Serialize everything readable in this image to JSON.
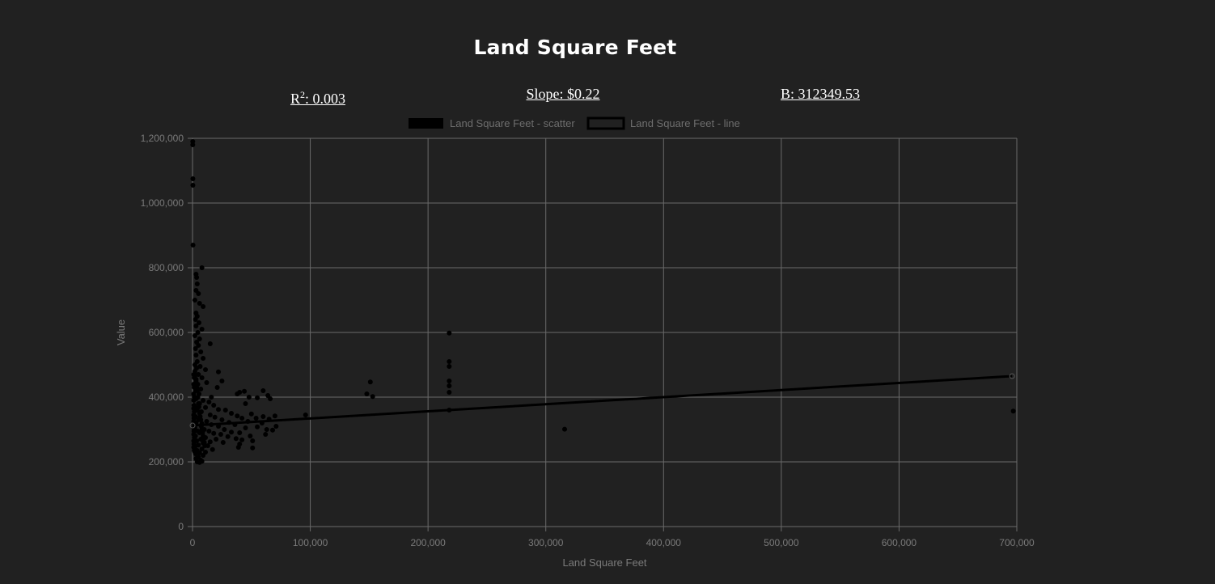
{
  "header": {
    "title": "Land Square Feet",
    "r2_label": "R",
    "r2_sup": "2",
    "r2_value": ": 0.003",
    "slope": "Slope: $0.22",
    "intercept": "B: 312349.53"
  },
  "colors": {
    "background": "#212121",
    "grid": "#6a6a6a",
    "points": "#000000",
    "line": "#000000",
    "muted_text": "#7a7a7a"
  },
  "chart_data": {
    "type": "scatter",
    "xlabel": "Land Square Feet",
    "ylabel": "Value",
    "xlim": [
      0,
      700000
    ],
    "ylim": [
      0,
      1200000
    ],
    "x_ticks": [
      0,
      100000,
      200000,
      300000,
      400000,
      500000,
      600000,
      700000
    ],
    "x_tick_labels": [
      "0",
      "100,000",
      "200,000",
      "300,000",
      "400,000",
      "500,000",
      "600,000",
      "700,000"
    ],
    "y_ticks": [
      0,
      200000,
      400000,
      600000,
      800000,
      1000000,
      1200000
    ],
    "y_tick_labels": [
      "0",
      "200,000",
      "400,000",
      "600,000",
      "800,000",
      "1,000,000",
      "1,200,000"
    ],
    "grid": true,
    "legend": [
      {
        "label": "Land Square Feet - scatter",
        "style": "filled"
      },
      {
        "label": "Land Square Feet - line",
        "style": "outline"
      }
    ],
    "legend_position": "top-center",
    "series": [
      {
        "name": "Land Square Feet - scatter",
        "kind": "scatter",
        "points": [
          [
            200,
            1190000
          ],
          [
            200,
            1180000
          ],
          [
            300,
            1075000
          ],
          [
            300,
            1055000
          ],
          [
            400,
            870000
          ],
          [
            8000,
            800000
          ],
          [
            3000,
            780000
          ],
          [
            3500,
            770000
          ],
          [
            4000,
            750000
          ],
          [
            3000,
            730000
          ],
          [
            5000,
            720000
          ],
          [
            2000,
            700000
          ],
          [
            6000,
            690000
          ],
          [
            9000,
            680000
          ],
          [
            3000,
            660000
          ],
          [
            4000,
            650000
          ],
          [
            2500,
            640000
          ],
          [
            5500,
            630000
          ],
          [
            3000,
            620000
          ],
          [
            8000,
            610000
          ],
          [
            4500,
            600000
          ],
          [
            2000,
            590000
          ],
          [
            6000,
            580000
          ],
          [
            3500,
            570000
          ],
          [
            15000,
            565000
          ],
          [
            5000,
            560000
          ],
          [
            2500,
            550000
          ],
          [
            7000,
            540000
          ],
          [
            3000,
            530000
          ],
          [
            9000,
            520000
          ],
          [
            4000,
            510000
          ],
          [
            2000,
            500000
          ],
          [
            6500,
            495000
          ],
          [
            3500,
            490000
          ],
          [
            11000,
            485000
          ],
          [
            22000,
            478000
          ],
          [
            5000,
            470000
          ],
          [
            2000,
            465000
          ],
          [
            8000,
            460000
          ],
          [
            25000,
            450000
          ],
          [
            3000,
            455000
          ],
          [
            12000,
            445000
          ],
          [
            4500,
            440000
          ],
          [
            21000,
            430000
          ],
          [
            7000,
            425000
          ],
          [
            2500,
            420000
          ],
          [
            40000,
            415000
          ],
          [
            44000,
            418000
          ],
          [
            60000,
            420000
          ],
          [
            38000,
            410000
          ],
          [
            5500,
            410000
          ],
          [
            64000,
            405000
          ],
          [
            16000,
            400000
          ],
          [
            48000,
            400000
          ],
          [
            55000,
            398000
          ],
          [
            66000,
            395000
          ],
          [
            3000,
            395000
          ],
          [
            9000,
            390000
          ],
          [
            14000,
            385000
          ],
          [
            45000,
            380000
          ],
          [
            6000,
            380000
          ],
          [
            18000,
            375000
          ],
          [
            2000,
            370000
          ],
          [
            11000,
            368000
          ],
          [
            22000,
            362000
          ],
          [
            28000,
            360000
          ],
          [
            4000,
            360000
          ],
          [
            7500,
            355000
          ],
          [
            33000,
            350000
          ],
          [
            50000,
            348000
          ],
          [
            15000,
            345000
          ],
          [
            38000,
            342000
          ],
          [
            60000,
            340000
          ],
          [
            70000,
            342000
          ],
          [
            96000,
            345000
          ],
          [
            2500,
            340000
          ],
          [
            19000,
            338000
          ],
          [
            42000,
            335000
          ],
          [
            54000,
            335000
          ],
          [
            65000,
            332000
          ],
          [
            5000,
            330000
          ],
          [
            25000,
            330000
          ],
          [
            12000,
            325000
          ],
          [
            47000,
            325000
          ],
          [
            31000,
            322000
          ],
          [
            59000,
            320000
          ],
          [
            3000,
            320000
          ],
          [
            8000,
            318000
          ],
          [
            16000,
            315000
          ],
          [
            36000,
            315000
          ],
          [
            71000,
            310000
          ],
          [
            22000,
            310000
          ],
          [
            55000,
            308000
          ],
          [
            2000,
            305000
          ],
          [
            45000,
            305000
          ],
          [
            10000,
            300000
          ],
          [
            27000,
            300000
          ],
          [
            63000,
            300000
          ],
          [
            68000,
            298000
          ],
          [
            4500,
            295000
          ],
          [
            14000,
            295000
          ],
          [
            33000,
            292000
          ],
          [
            40000,
            290000
          ],
          [
            6000,
            290000
          ],
          [
            18000,
            288000
          ],
          [
            62000,
            285000
          ],
          [
            24000,
            285000
          ],
          [
            2500,
            280000
          ],
          [
            49000,
            280000
          ],
          [
            30000,
            278000
          ],
          [
            11000,
            275000
          ],
          [
            37000,
            272000
          ],
          [
            7000,
            270000
          ],
          [
            20000,
            270000
          ],
          [
            42000,
            268000
          ],
          [
            51000,
            265000
          ],
          [
            3500,
            265000
          ],
          [
            15000,
            262000
          ],
          [
            26000,
            260000
          ],
          [
            9000,
            258000
          ],
          [
            40000,
            255000
          ],
          [
            5000,
            252000
          ],
          [
            13000,
            250000
          ],
          [
            39000,
            245000
          ],
          [
            51000,
            243000
          ],
          [
            2000,
            245000
          ],
          [
            8000,
            240000
          ],
          [
            17000,
            238000
          ],
          [
            4000,
            235000
          ],
          [
            11000,
            230000
          ],
          [
            6000,
            228000
          ],
          [
            2500,
            225000
          ],
          [
            9000,
            220000
          ],
          [
            5000,
            215000
          ],
          [
            3000,
            210000
          ],
          [
            7000,
            205000
          ],
          [
            4000,
            200000
          ],
          [
            6000,
            198000
          ],
          [
            8000,
            202000
          ],
          [
            2000,
            230000
          ],
          [
            1000,
            470000
          ],
          [
            1500,
            460000
          ],
          [
            1000,
            440000
          ],
          [
            1500,
            430000
          ],
          [
            1000,
            410000
          ],
          [
            1500,
            400000
          ],
          [
            1000,
            390000
          ],
          [
            1200,
            375000
          ],
          [
            1000,
            365000
          ],
          [
            1500,
            355000
          ],
          [
            1000,
            345000
          ],
          [
            1200,
            335000
          ],
          [
            1000,
            325000
          ],
          [
            1500,
            315000
          ],
          [
            1000,
            305000
          ],
          [
            1200,
            295000
          ],
          [
            1000,
            285000
          ],
          [
            1500,
            275000
          ],
          [
            1000,
            265000
          ],
          [
            1200,
            255000
          ],
          [
            1000,
            245000
          ],
          [
            1500,
            235000
          ],
          [
            2000,
            480000
          ],
          [
            2500,
            470000
          ],
          [
            3000,
            450000
          ],
          [
            3500,
            430000
          ],
          [
            4000,
            420000
          ],
          [
            4500,
            400000
          ],
          [
            5000,
            380000
          ],
          [
            5500,
            370000
          ],
          [
            6000,
            350000
          ],
          [
            6500,
            340000
          ],
          [
            7000,
            330000
          ],
          [
            7500,
            310000
          ],
          [
            8000,
            300000
          ],
          [
            8500,
            290000
          ],
          [
            9000,
            280000
          ],
          [
            9500,
            270000
          ],
          [
            10000,
            260000
          ],
          [
            10500,
            250000
          ],
          [
            148000,
            410000
          ],
          [
            151000,
            447000
          ],
          [
            153000,
            402000
          ],
          [
            218000,
            598000
          ],
          [
            218000,
            510000
          ],
          [
            218000,
            495000
          ],
          [
            218000,
            450000
          ],
          [
            218000,
            435000
          ],
          [
            218000,
            415000
          ],
          [
            218000,
            360000
          ],
          [
            316000,
            301000
          ],
          [
            697000,
            357000
          ]
        ]
      },
      {
        "name": "Land Square Feet - line",
        "kind": "line",
        "points": [
          [
            0,
            312350
          ],
          [
            696000,
            465000
          ]
        ]
      }
    ]
  }
}
